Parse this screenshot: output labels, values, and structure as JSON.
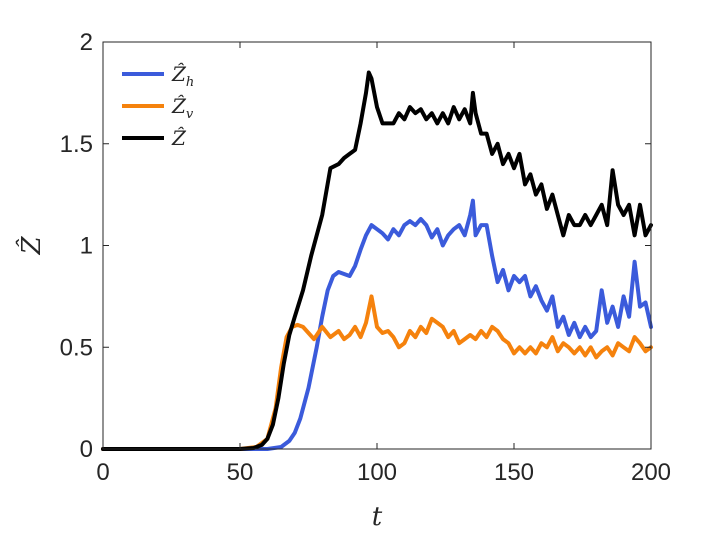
{
  "chart_data": {
    "type": "line",
    "title": "",
    "xlabel": "t",
    "ylabel": "Ẑ",
    "xlim": [
      0,
      200
    ],
    "ylim": [
      0,
      2
    ],
    "xticks": [
      0,
      50,
      100,
      150,
      200
    ],
    "yticks": [
      0,
      0.5,
      1,
      1.5,
      2
    ],
    "xtick_labels": [
      "0",
      "50",
      "100",
      "150",
      "200"
    ],
    "ytick_labels": [
      "0",
      "0.5",
      "1",
      "1.5",
      "2"
    ],
    "grid": false,
    "legend_position": "top-left",
    "series": [
      {
        "name": "Ẑh",
        "legend_base": "Ẑ",
        "legend_sub": "h",
        "color": "#3b5bdb",
        "x": [
          0,
          50,
          60,
          65,
          68,
          70,
          72,
          75,
          78,
          80,
          82,
          84,
          86,
          88,
          90,
          92,
          94,
          96,
          98,
          100,
          102,
          104,
          106,
          108,
          110,
          112,
          114,
          116,
          118,
          120,
          122,
          124,
          126,
          128,
          130,
          132,
          134,
          135,
          136,
          138,
          140,
          142,
          144,
          146,
          148,
          150,
          152,
          154,
          156,
          158,
          160,
          162,
          164,
          166,
          168,
          170,
          172,
          174,
          176,
          178,
          180,
          182,
          184,
          186,
          188,
          190,
          192,
          194,
          196,
          198,
          200
        ],
        "y": [
          0,
          0,
          0,
          0.01,
          0.04,
          0.08,
          0.15,
          0.3,
          0.5,
          0.65,
          0.78,
          0.85,
          0.87,
          0.86,
          0.85,
          0.9,
          0.98,
          1.05,
          1.1,
          1.08,
          1.06,
          1.03,
          1.08,
          1.05,
          1.1,
          1.12,
          1.1,
          1.13,
          1.1,
          1.04,
          1.08,
          1.0,
          1.05,
          1.08,
          1.1,
          1.05,
          1.15,
          1.22,
          1.05,
          1.1,
          1.1,
          0.95,
          0.82,
          0.88,
          0.78,
          0.85,
          0.82,
          0.85,
          0.75,
          0.8,
          0.73,
          0.68,
          0.75,
          0.6,
          0.65,
          0.56,
          0.62,
          0.55,
          0.6,
          0.55,
          0.58,
          0.78,
          0.62,
          0.7,
          0.6,
          0.75,
          0.65,
          0.92,
          0.7,
          0.72,
          0.6
        ]
      },
      {
        "name": "Ẑv",
        "legend_base": "Ẑ",
        "legend_sub": "v",
        "color": "#f5820d",
        "x": [
          0,
          50,
          56,
          60,
          63,
          65,
          67,
          69,
          71,
          73,
          75,
          77,
          80,
          83,
          86,
          88,
          90,
          92,
          94,
          96,
          98,
          100,
          102,
          104,
          106,
          108,
          110,
          112,
          114,
          116,
          118,
          120,
          122,
          124,
          126,
          128,
          130,
          132,
          134,
          136,
          138,
          140,
          142,
          144,
          146,
          148,
          150,
          152,
          154,
          156,
          158,
          160,
          162,
          164,
          166,
          168,
          170,
          172,
          174,
          176,
          178,
          180,
          182,
          184,
          186,
          188,
          190,
          192,
          194,
          196,
          198,
          200
        ],
        "y": [
          0,
          0,
          0.01,
          0.05,
          0.2,
          0.4,
          0.55,
          0.6,
          0.61,
          0.6,
          0.57,
          0.54,
          0.6,
          0.55,
          0.58,
          0.54,
          0.56,
          0.6,
          0.55,
          0.62,
          0.75,
          0.6,
          0.57,
          0.58,
          0.55,
          0.5,
          0.52,
          0.58,
          0.55,
          0.6,
          0.57,
          0.64,
          0.62,
          0.6,
          0.55,
          0.58,
          0.52,
          0.54,
          0.56,
          0.54,
          0.58,
          0.55,
          0.6,
          0.58,
          0.54,
          0.52,
          0.47,
          0.5,
          0.47,
          0.5,
          0.47,
          0.52,
          0.5,
          0.55,
          0.48,
          0.52,
          0.5,
          0.47,
          0.5,
          0.46,
          0.5,
          0.45,
          0.48,
          0.5,
          0.46,
          0.52,
          0.5,
          0.48,
          0.55,
          0.52,
          0.48,
          0.5
        ]
      },
      {
        "name": "Ẑ",
        "legend_base": "Ẑ",
        "legend_sub": "",
        "color": "#000000",
        "x": [
          0,
          50,
          55,
          58,
          60,
          62,
          64,
          66,
          68,
          70,
          73,
          76,
          80,
          83,
          86,
          88,
          90,
          92,
          94,
          96,
          97,
          98,
          100,
          102,
          104,
          106,
          108,
          110,
          112,
          114,
          116,
          118,
          120,
          122,
          124,
          126,
          128,
          130,
          132,
          134,
          135,
          136,
          138,
          140,
          142,
          144,
          146,
          148,
          150,
          152,
          154,
          156,
          158,
          160,
          162,
          164,
          166,
          168,
          170,
          172,
          174,
          176,
          178,
          180,
          182,
          184,
          186,
          188,
          190,
          192,
          194,
          196,
          198,
          200
        ],
        "y": [
          0,
          0,
          0.005,
          0.02,
          0.05,
          0.12,
          0.25,
          0.42,
          0.56,
          0.65,
          0.78,
          0.95,
          1.15,
          1.38,
          1.4,
          1.43,
          1.45,
          1.47,
          1.6,
          1.75,
          1.85,
          1.82,
          1.68,
          1.6,
          1.6,
          1.6,
          1.65,
          1.62,
          1.68,
          1.65,
          1.67,
          1.62,
          1.65,
          1.6,
          1.65,
          1.6,
          1.68,
          1.62,
          1.67,
          1.6,
          1.75,
          1.65,
          1.55,
          1.55,
          1.45,
          1.5,
          1.4,
          1.45,
          1.38,
          1.45,
          1.3,
          1.35,
          1.25,
          1.3,
          1.18,
          1.25,
          1.15,
          1.05,
          1.15,
          1.1,
          1.1,
          1.15,
          1.1,
          1.15,
          1.2,
          1.1,
          1.37,
          1.2,
          1.15,
          1.2,
          1.05,
          1.2,
          1.05,
          1.1
        ]
      }
    ]
  }
}
